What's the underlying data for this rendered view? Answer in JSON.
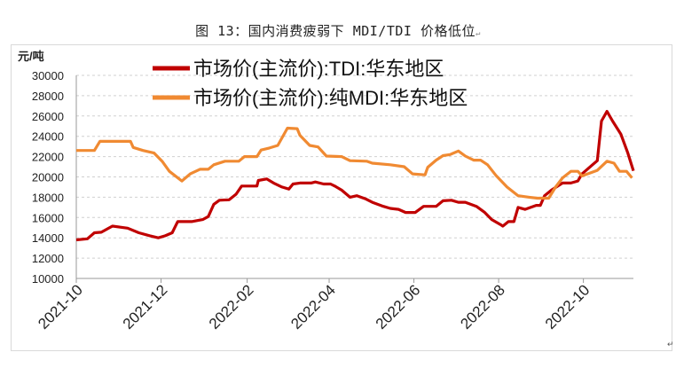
{
  "title": "图 13：国内消费疲弱下 MDI/TDI 价格低位",
  "return_mark": "↵",
  "chart_data": {
    "type": "line",
    "title": "图 13：国内消费疲弱下 MDI/TDI 价格低位",
    "ylabel": "元/吨",
    "xlabel": "",
    "x_unit": "days since 2021-10-01",
    "ylim": [
      10000,
      30000
    ],
    "xlim": [
      0,
      401
    ],
    "yticks": [
      "10000",
      "12000",
      "14000",
      "16000",
      "18000",
      "20000",
      "22000",
      "24000",
      "26000",
      "28000",
      "30000"
    ],
    "xticks": [
      {
        "label": "2021-10",
        "day": 0
      },
      {
        "label": "2021-12",
        "day": 61
      },
      {
        "label": "2022-02",
        "day": 123
      },
      {
        "label": "2022-04",
        "day": 182
      },
      {
        "label": "2022-06",
        "day": 243
      },
      {
        "label": "2022-08",
        "day": 304
      },
      {
        "label": "2022-10",
        "day": 365
      }
    ],
    "grid": true,
    "legend_position": "top-left",
    "series": [
      {
        "name": "市场价(主流价):TDI:华东地区",
        "color": "#c00000",
        "points": [
          [
            0,
            13800
          ],
          [
            8,
            13900
          ],
          [
            13,
            14500
          ],
          [
            18,
            14550
          ],
          [
            26,
            15150
          ],
          [
            37,
            14950
          ],
          [
            45,
            14500
          ],
          [
            53,
            14200
          ],
          [
            59,
            14000
          ],
          [
            64,
            14200
          ],
          [
            69,
            14500
          ],
          [
            73,
            15600
          ],
          [
            83,
            15600
          ],
          [
            91,
            15800
          ],
          [
            95,
            16100
          ],
          [
            99,
            17300
          ],
          [
            103,
            17700
          ],
          [
            110,
            17750
          ],
          [
            115,
            18300
          ],
          [
            119,
            19100
          ],
          [
            130,
            19100
          ],
          [
            131,
            19650
          ],
          [
            137,
            19800
          ],
          [
            142,
            19400
          ],
          [
            148,
            19000
          ],
          [
            153,
            18800
          ],
          [
            156,
            19300
          ],
          [
            161,
            19400
          ],
          [
            169,
            19400
          ],
          [
            172,
            19500
          ],
          [
            178,
            19300
          ],
          [
            183,
            19300
          ],
          [
            186,
            19100
          ],
          [
            191,
            18700
          ],
          [
            197,
            18000
          ],
          [
            202,
            18150
          ],
          [
            208,
            17850
          ],
          [
            213,
            17500
          ],
          [
            221,
            17100
          ],
          [
            226,
            16900
          ],
          [
            232,
            16800
          ],
          [
            237,
            16500
          ],
          [
            244,
            16500
          ],
          [
            250,
            17100
          ],
          [
            259,
            17100
          ],
          [
            264,
            17650
          ],
          [
            270,
            17700
          ],
          [
            275,
            17500
          ],
          [
            280,
            17500
          ],
          [
            288,
            17100
          ],
          [
            294,
            16500
          ],
          [
            299,
            15800
          ],
          [
            306,
            15250
          ],
          [
            307,
            15150
          ],
          [
            311,
            15600
          ],
          [
            315,
            15600
          ],
          [
            318,
            17000
          ],
          [
            323,
            16800
          ],
          [
            331,
            17200
          ],
          [
            334,
            17200
          ],
          [
            337,
            18150
          ],
          [
            342,
            18700
          ],
          [
            350,
            19400
          ],
          [
            356,
            19400
          ],
          [
            361,
            19600
          ],
          [
            364,
            20300
          ],
          [
            372,
            21250
          ],
          [
            375,
            21600
          ],
          [
            378,
            25500
          ],
          [
            382,
            26450
          ],
          [
            386,
            25500
          ],
          [
            392,
            24200
          ],
          [
            397,
            22350
          ],
          [
            401,
            20600
          ]
        ]
      },
      {
        "name": "市场价(主流价):纯MDI:华东地区",
        "color": "#f08a32",
        "points": [
          [
            0,
            22600
          ],
          [
            13,
            22600
          ],
          [
            17,
            23500
          ],
          [
            39,
            23500
          ],
          [
            41,
            22900
          ],
          [
            48,
            22600
          ],
          [
            56,
            22350
          ],
          [
            62,
            21500
          ],
          [
            67,
            20550
          ],
          [
            76,
            19600
          ],
          [
            82,
            20300
          ],
          [
            89,
            20750
          ],
          [
            95,
            20750
          ],
          [
            99,
            21200
          ],
          [
            107,
            21550
          ],
          [
            117,
            21550
          ],
          [
            121,
            22000
          ],
          [
            130,
            22000
          ],
          [
            133,
            22650
          ],
          [
            139,
            22850
          ],
          [
            145,
            23100
          ],
          [
            152,
            24800
          ],
          [
            159,
            24750
          ],
          [
            161,
            24100
          ],
          [
            168,
            23100
          ],
          [
            174,
            22950
          ],
          [
            180,
            22050
          ],
          [
            191,
            22000
          ],
          [
            197,
            21600
          ],
          [
            209,
            21550
          ],
          [
            213,
            21350
          ],
          [
            226,
            21200
          ],
          [
            236,
            21000
          ],
          [
            242,
            20300
          ],
          [
            251,
            20200
          ],
          [
            253,
            20950
          ],
          [
            259,
            21650
          ],
          [
            264,
            22100
          ],
          [
            269,
            22200
          ],
          [
            275,
            22550
          ],
          [
            280,
            22050
          ],
          [
            286,
            21650
          ],
          [
            291,
            21650
          ],
          [
            296,
            21200
          ],
          [
            302,
            20150
          ],
          [
            310,
            19000
          ],
          [
            318,
            18150
          ],
          [
            326,
            18000
          ],
          [
            332,
            17900
          ],
          [
            340,
            17900
          ],
          [
            345,
            19000
          ],
          [
            350,
            19900
          ],
          [
            356,
            20550
          ],
          [
            361,
            20550
          ],
          [
            364,
            20100
          ],
          [
            375,
            20650
          ],
          [
            382,
            21550
          ],
          [
            387,
            21350
          ],
          [
            391,
            20550
          ],
          [
            396,
            20550
          ],
          [
            400,
            19900
          ]
        ]
      }
    ]
  }
}
